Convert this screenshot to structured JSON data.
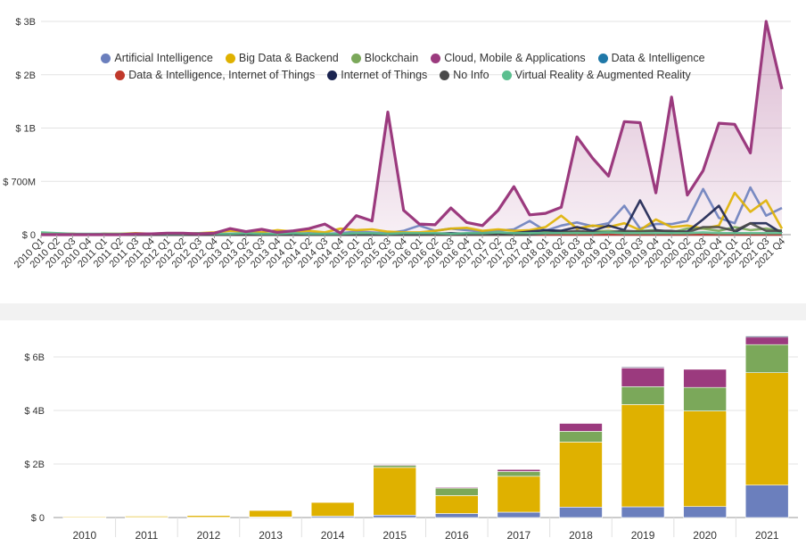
{
  "chart_data": [
    {
      "type": "area",
      "y_unit": "$ billions",
      "ylim": [
        0,
        3.0
      ],
      "ytick_labels": [
        "$ 0",
        "$ 700M",
        "$ 1B",
        "$ 2B",
        "$ 3B"
      ],
      "grid": true,
      "legend_position": "top",
      "categories": [
        "2010 Q1",
        "2010 Q2",
        "2010 Q3",
        "2010 Q4",
        "2011 Q1",
        "2011 Q2",
        "2011 Q3",
        "2011 Q4",
        "2012 Q1",
        "2012 Q2",
        "2012 Q3",
        "2012 Q4",
        "2013 Q1",
        "2013 Q2",
        "2013 Q3",
        "2013 Q4",
        "2014 Q1",
        "2014 Q2",
        "2014 Q3",
        "2014 Q4",
        "2015 Q1",
        "2015 Q2",
        "2015 Q3",
        "2015 Q4",
        "2016 Q1",
        "2016 Q2",
        "2016 Q3",
        "2016 Q4",
        "2017 Q1",
        "2017 Q2",
        "2017 Q3",
        "2017 Q4",
        "2018 Q1",
        "2018 Q2",
        "2018 Q3",
        "2018 Q4",
        "2019 Q1",
        "2019 Q2",
        "2019 Q3",
        "2019 Q4",
        "2020 Q1",
        "2020 Q2",
        "2020 Q3",
        "2020 Q4",
        "2021 Q1",
        "2021 Q2",
        "2021 Q3",
        "2021 Q4"
      ],
      "series": [
        {
          "name": "Artificial Intelligence",
          "color": "#6b7fbd",
          "values": [
            0.01,
            0.0,
            0.01,
            0.0,
            0.01,
            0.0,
            0.0,
            0.0,
            0.01,
            0.0,
            0.0,
            0.0,
            0.01,
            0.01,
            0.01,
            0.0,
            0.01,
            0.02,
            0.01,
            0.02,
            0.04,
            0.03,
            0.02,
            0.05,
            0.12,
            0.05,
            0.08,
            0.06,
            0.04,
            0.05,
            0.07,
            0.18,
            0.05,
            0.12,
            0.16,
            0.11,
            0.15,
            0.38,
            0.08,
            0.14,
            0.14,
            0.18,
            0.6,
            0.22,
            0.15,
            0.62,
            0.25,
            0.35
          ]
        },
        {
          "name": "Big Data & Backend",
          "color": "#dfb100",
          "values": [
            0.02,
            0.01,
            0.01,
            0.0,
            0.01,
            0.01,
            0.02,
            0.01,
            0.02,
            0.01,
            0.02,
            0.03,
            0.05,
            0.04,
            0.03,
            0.06,
            0.04,
            0.05,
            0.03,
            0.08,
            0.06,
            0.07,
            0.04,
            0.03,
            0.03,
            0.05,
            0.08,
            0.09,
            0.05,
            0.07,
            0.05,
            0.06,
            0.1,
            0.25,
            0.08,
            0.12,
            0.1,
            0.15,
            0.06,
            0.2,
            0.1,
            0.12,
            0.08,
            0.12,
            0.55,
            0.3,
            0.45,
            0.08
          ]
        },
        {
          "name": "Blockchain",
          "color": "#7ba85a",
          "values": [
            0.0,
            0.0,
            0.0,
            0.0,
            0.0,
            0.0,
            0.0,
            0.0,
            0.0,
            0.0,
            0.0,
            0.0,
            0.0,
            0.0,
            0.0,
            0.0,
            0.0,
            0.0,
            0.0,
            0.0,
            0.0,
            0.0,
            0.0,
            0.0,
            0.0,
            0.0,
            0.0,
            0.0,
            0.0,
            0.0,
            0.0,
            0.0,
            0.04,
            0.05,
            0.02,
            0.04,
            0.05,
            0.03,
            0.05,
            0.06,
            0.03,
            0.08,
            0.08,
            0.05,
            0.1,
            0.06,
            0.08,
            0.05
          ]
        },
        {
          "name": "Cloud, Mobile & Applications",
          "color": "#9b3a7e",
          "values": [
            0.0,
            0.0,
            0.0,
            0.0,
            0.0,
            0.0,
            0.01,
            0.01,
            0.02,
            0.02,
            0.01,
            0.02,
            0.08,
            0.04,
            0.07,
            0.03,
            0.05,
            0.08,
            0.14,
            0.02,
            0.25,
            0.18,
            1.3,
            0.32,
            0.14,
            0.13,
            0.35,
            0.16,
            0.12,
            0.32,
            0.63,
            0.26,
            0.28,
            0.36,
            0.95,
            0.83,
            0.73,
            1.12,
            1.1,
            0.55,
            1.58,
            0.52,
            0.76,
            1.09,
            1.07,
            0.86,
            3.0,
            1.73
          ]
        },
        {
          "name": "Data & Intelligence",
          "color": "#1f78a8",
          "values": [
            0.0,
            0.0,
            0.0,
            0.0,
            0.0,
            0.0,
            0.0,
            0.0,
            0.0,
            0.0,
            0.0,
            0.0,
            0.0,
            0.0,
            0.0,
            0.0,
            0.0,
            0.0,
            0.0,
            0.0,
            0.0,
            0.0,
            0.0,
            0.0,
            0.0,
            0.0,
            0.0,
            0.0,
            0.0,
            0.0,
            0.0,
            0.0,
            0.0,
            0.0,
            0.0,
            0.0,
            0.0,
            0.0,
            0.0,
            0.0,
            0.0,
            0.0,
            0.0,
            0.0,
            0.0,
            0.0,
            0.0,
            0.0
          ]
        },
        {
          "name": "Data & Intelligence, Internet of Things",
          "color": "#c0392b",
          "values": [
            0.0,
            0.0,
            0.0,
            0.0,
            0.0,
            0.0,
            0.0,
            0.0,
            0.0,
            0.0,
            0.0,
            0.0,
            0.0,
            0.0,
            0.0,
            0.0,
            0.0,
            0.0,
            0.0,
            0.0,
            0.0,
            0.0,
            0.0,
            0.0,
            0.0,
            0.0,
            0.0,
            0.0,
            0.0,
            0.0,
            0.0,
            0.0,
            0.0,
            0.0,
            0.0,
            0.0,
            0.0,
            0.0,
            0.0,
            0.0,
            0.0,
            0.0,
            0.0,
            0.0,
            0.0,
            0.0,
            0.0,
            0.0
          ]
        },
        {
          "name": "Internet of Things",
          "color": "#1b2450",
          "values": [
            0.0,
            0.0,
            0.0,
            0.0,
            0.0,
            0.0,
            0.0,
            0.0,
            0.0,
            0.0,
            0.0,
            0.0,
            0.0,
            0.0,
            0.0,
            0.0,
            0.0,
            0.0,
            0.0,
            0.0,
            0.0,
            0.0,
            0.0,
            0.0,
            0.0,
            0.01,
            0.02,
            0.01,
            0.02,
            0.01,
            0.02,
            0.04,
            0.06,
            0.05,
            0.1,
            0.05,
            0.12,
            0.06,
            0.45,
            0.06,
            0.04,
            0.04,
            0.2,
            0.38,
            0.03,
            0.15,
            0.15,
            0.02
          ]
        },
        {
          "name": "No Info",
          "color": "#4a4a4a",
          "values": [
            0.0,
            0.0,
            0.0,
            0.0,
            0.0,
            0.0,
            0.0,
            0.0,
            0.0,
            0.0,
            0.0,
            0.0,
            0.0,
            0.0,
            0.0,
            0.0,
            0.0,
            0.0,
            0.0,
            0.0,
            0.0,
            0.0,
            0.0,
            0.0,
            0.0,
            0.0,
            0.0,
            0.0,
            0.0,
            0.0,
            0.0,
            0.0,
            0.02,
            0.03,
            0.05,
            0.03,
            0.03,
            0.05,
            0.04,
            0.05,
            0.05,
            0.03,
            0.1,
            0.1,
            0.05,
            0.15,
            0.05,
            0.05
          ]
        },
        {
          "name": "Virtual Reality & Augmented Reality",
          "color": "#5bbf8f",
          "values": [
            0.03,
            0.02,
            0.01,
            0.01,
            0.01,
            0.01,
            0.01,
            0.01,
            0.01,
            0.01,
            0.02,
            0.01,
            0.01,
            0.02,
            0.01,
            0.01,
            0.02,
            0.01,
            0.01,
            0.01,
            0.02,
            0.02,
            0.01,
            0.02,
            0.02,
            0.02,
            0.01,
            0.02,
            0.02,
            0.03,
            0.02,
            0.02,
            0.02,
            0.02,
            0.02,
            0.02,
            0.03,
            0.02,
            0.02,
            0.02,
            0.02,
            0.02,
            0.03,
            0.02,
            0.02,
            0.02,
            0.02,
            0.02
          ]
        }
      ]
    },
    {
      "type": "bar",
      "stacked": true,
      "y_unit": "$ billions",
      "ylim": [
        0,
        6.9
      ],
      "ytick_labels": [
        "$ 0",
        "$ 2B",
        "$ 4B",
        "$ 6B"
      ],
      "grid": true,
      "categories": [
        "2010",
        "2011",
        "2012",
        "2013",
        "2014",
        "2015",
        "2016",
        "2017",
        "2018",
        "2019",
        "2020",
        "2021"
      ],
      "series": [
        {
          "name": "Artificial Intelligence",
          "color": "#6b7fbd",
          "values": [
            0.01,
            0.01,
            0.01,
            0.02,
            0.05,
            0.09,
            0.15,
            0.2,
            0.39,
            0.4,
            0.41,
            1.21
          ]
        },
        {
          "name": "Big Data & Backend",
          "color": "#dfb100",
          "values": [
            0.03,
            0.04,
            0.07,
            0.25,
            0.52,
            1.78,
            0.67,
            1.34,
            2.43,
            3.82,
            3.57,
            4.2
          ]
        },
        {
          "name": "Blockchain",
          "color": "#7ba85a",
          "values": [
            0.0,
            0.0,
            0.0,
            0.0,
            0.0,
            0.08,
            0.28,
            0.18,
            0.4,
            0.67,
            0.88,
            1.05
          ]
        },
        {
          "name": "Cloud, Mobile & Applications",
          "color": "#9b3a7e",
          "values": [
            0.0,
            0.0,
            0.01,
            0.01,
            0.01,
            0.03,
            0.04,
            0.08,
            0.3,
            0.7,
            0.68,
            0.28
          ]
        },
        {
          "name": "Internet of Things",
          "color": "#1b2450",
          "values": [
            0.0,
            0.0,
            0.0,
            0.0,
            0.0,
            0.0,
            0.01,
            0.01,
            0.02,
            0.03,
            0.02,
            0.04
          ]
        }
      ]
    }
  ]
}
